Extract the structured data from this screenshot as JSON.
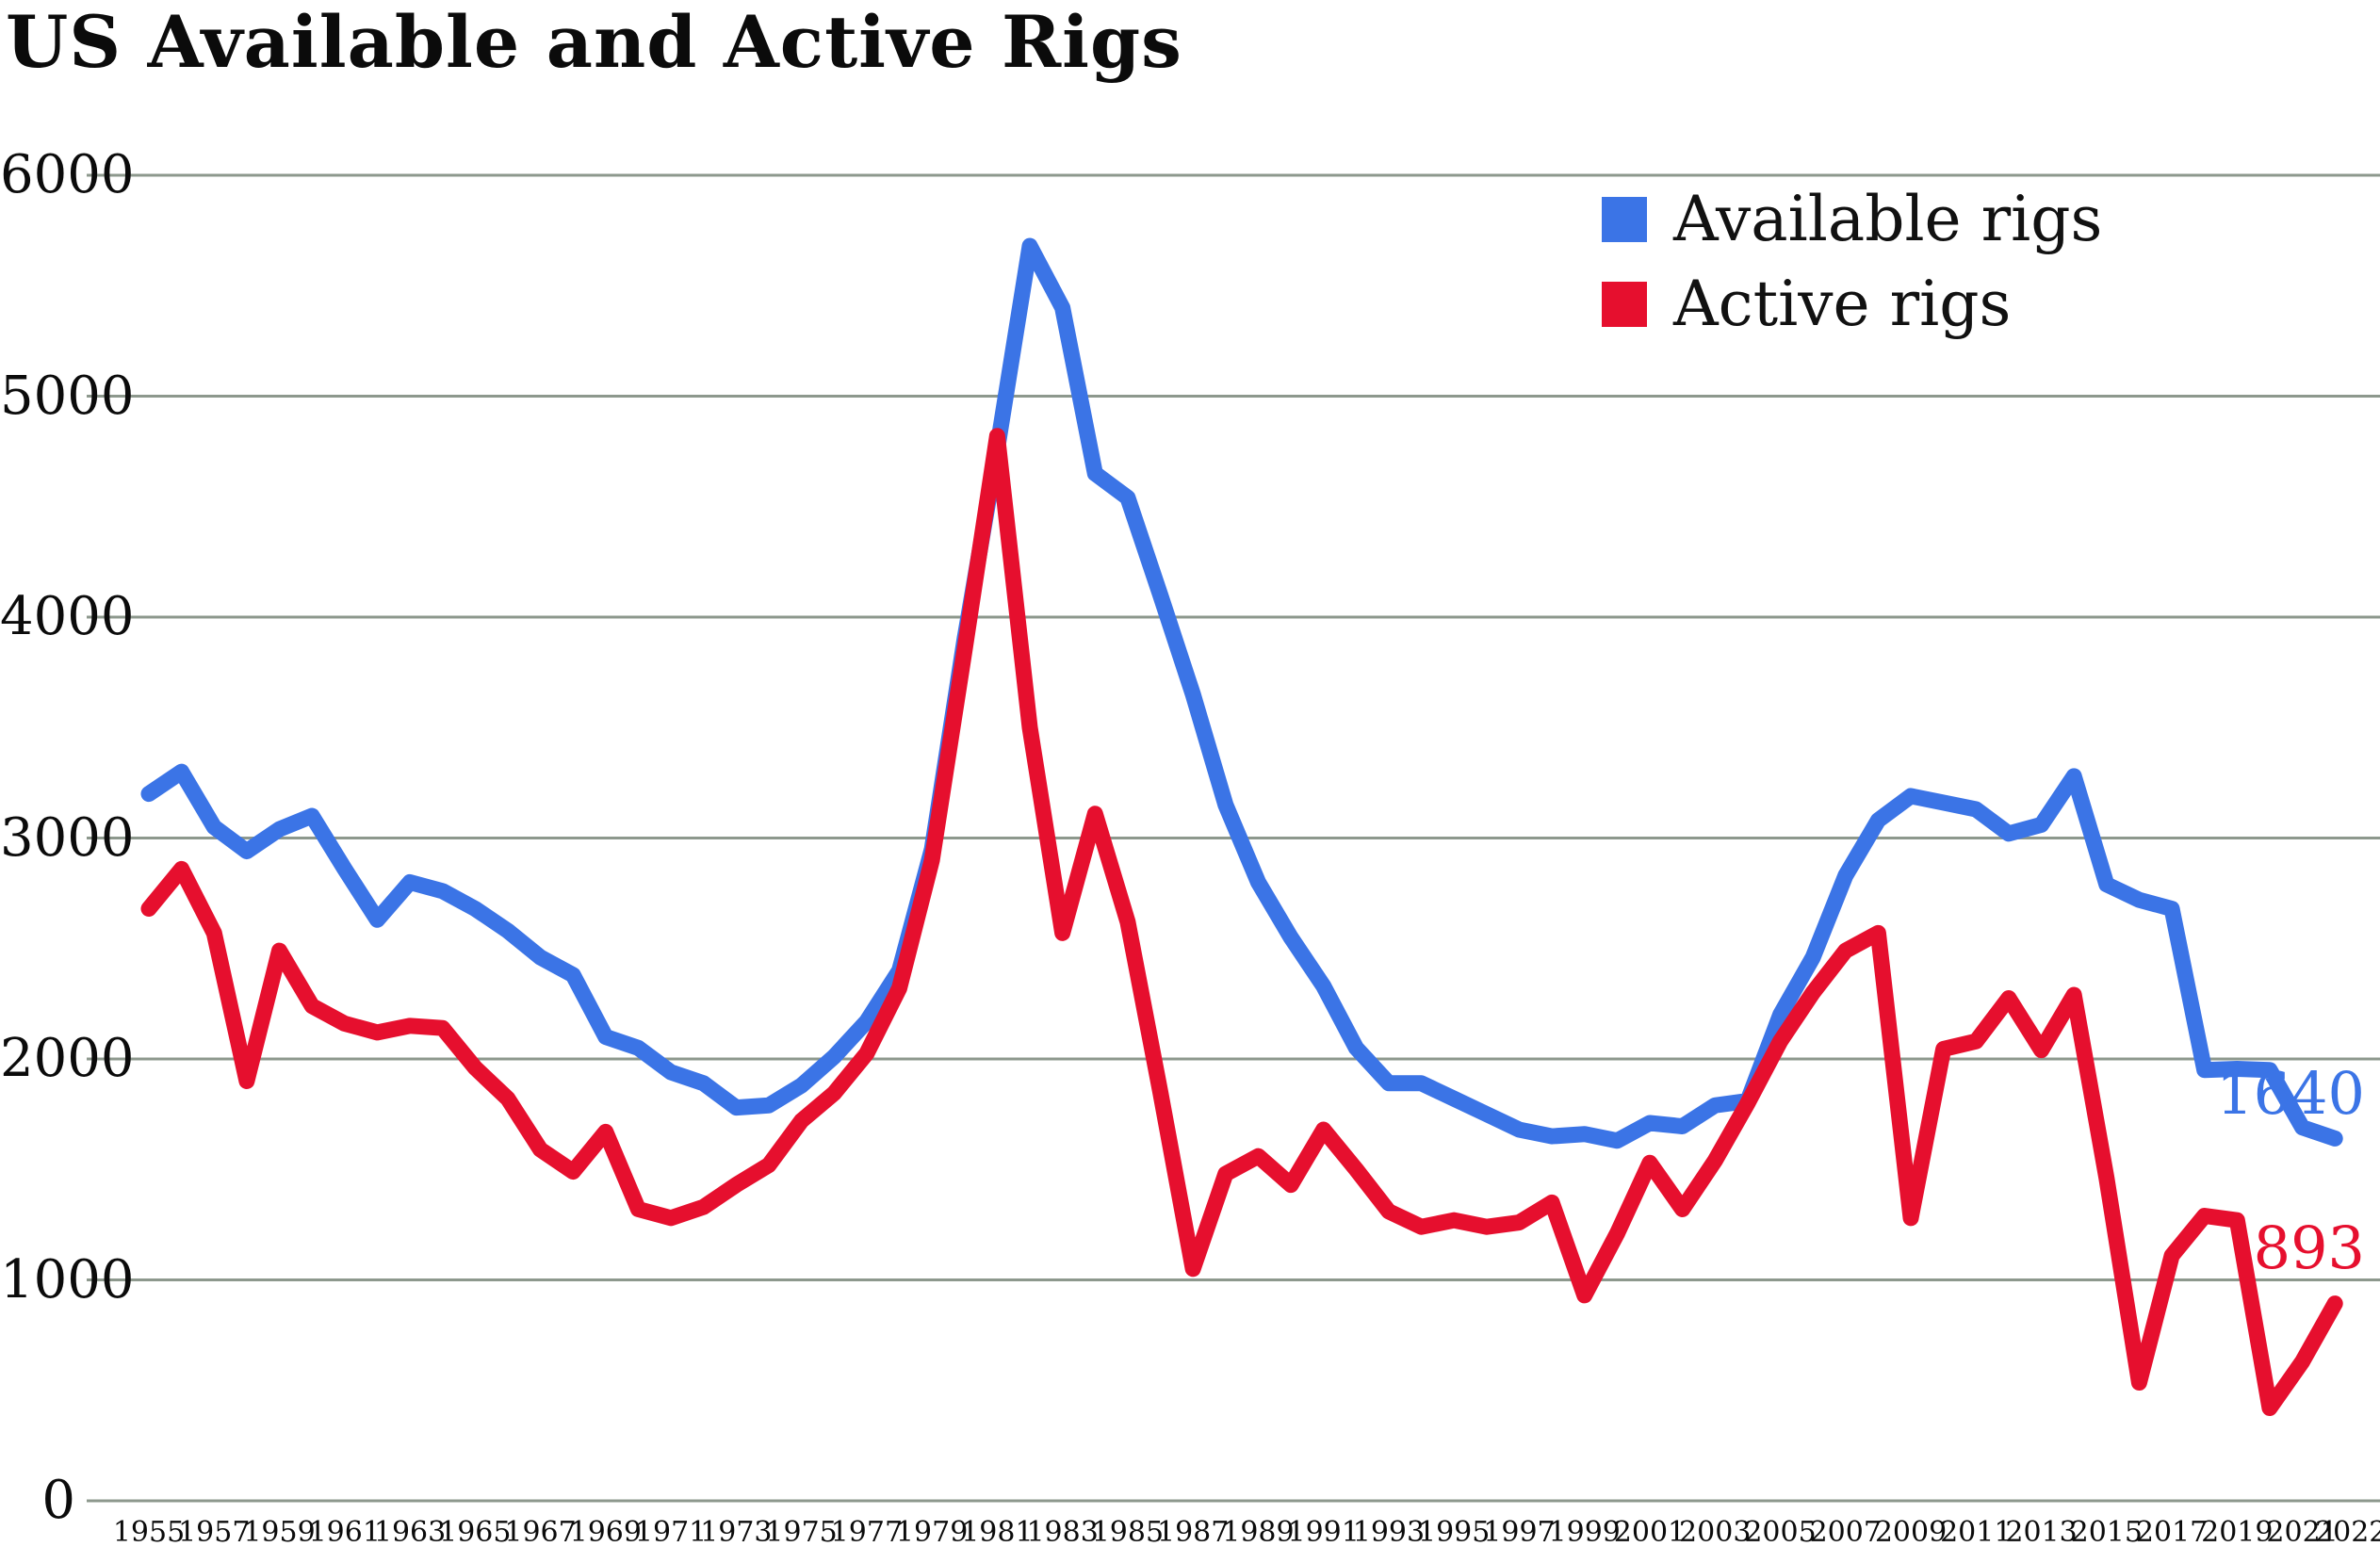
{
  "title": "US Available and Active Rigs",
  "colors": {
    "available": "#3B74E6",
    "active": "#E60F2E",
    "gridline": "#8D988D",
    "text": "#0B0B0B",
    "background": "#FFFFFF"
  },
  "legend": {
    "items": [
      {
        "label": "Available rigs",
        "color": "#3B74E6"
      },
      {
        "label": "Active rigs",
        "color": "#E60F2E"
      }
    ]
  },
  "end_labels": {
    "available": "1640",
    "active": "893"
  },
  "chart_data": {
    "type": "line",
    "title": "US Available and Active Rigs",
    "xlabel": "",
    "ylabel": "",
    "ylim": [
      0,
      6000
    ],
    "yticks": [
      0,
      1000,
      2000,
      3000,
      4000,
      5000,
      6000
    ],
    "grid": "horizontal",
    "legend_position": "top-right",
    "xtick_labels": [
      "1955",
      "1957",
      "1959",
      "1961",
      "1963",
      "1965",
      "1967",
      "1969",
      "1971",
      "1973",
      "1975",
      "1977",
      "1979",
      "1981",
      "1983",
      "1985",
      "1987",
      "1989",
      "1991",
      "1993",
      "1995",
      "1997",
      "1999",
      "2001",
      "2003",
      "2005",
      "2007",
      "2009",
      "2011",
      "2013",
      "2015",
      "2017",
      "2019",
      "2021",
      "2022"
    ],
    "x": [
      1955,
      1956,
      1957,
      1958,
      1959,
      1960,
      1961,
      1962,
      1963,
      1964,
      1965,
      1966,
      1967,
      1968,
      1969,
      1970,
      1971,
      1972,
      1973,
      1974,
      1975,
      1976,
      1977,
      1978,
      1979,
      1980,
      1981,
      1982,
      1983,
      1984,
      1985,
      1986,
      1987,
      1988,
      1989,
      1990,
      1991,
      1992,
      1993,
      1994,
      1995,
      1996,
      1997,
      1998,
      1999,
      2000,
      2001,
      2002,
      2003,
      2004,
      2005,
      2006,
      2007,
      2008,
      2009,
      2010,
      2011,
      2012,
      2013,
      2014,
      2015,
      2016,
      2017,
      2018,
      2019,
      2020,
      2021,
      2022
    ],
    "series": [
      {
        "name": "Available rigs",
        "color": "#3B74E6",
        "values": [
          3200,
          3300,
          3050,
          2940,
          3040,
          3100,
          2860,
          2630,
          2800,
          2760,
          2680,
          2580,
          2460,
          2380,
          2100,
          2050,
          1940,
          1890,
          1780,
          1790,
          1880,
          2010,
          2170,
          2400,
          2950,
          3900,
          4760,
          5680,
          5400,
          4650,
          4540,
          4100,
          3650,
          3150,
          2800,
          2550,
          2330,
          2050,
          1890,
          1890,
          1820,
          1750,
          1680,
          1650,
          1660,
          1630,
          1710,
          1695,
          1790,
          1810,
          2200,
          2460,
          2830,
          3080,
          3190,
          3160,
          3130,
          3020,
          3060,
          3280,
          2790,
          2720,
          2680,
          1950,
          1955,
          1950,
          1690,
          1640
        ]
      },
      {
        "name": "Active rigs",
        "color": "#E60F2E",
        "values": [
          2680,
          2860,
          2570,
          1900,
          2490,
          2240,
          2160,
          2120,
          2150,
          2140,
          1960,
          1820,
          1590,
          1490,
          1670,
          1320,
          1280,
          1330,
          1430,
          1520,
          1720,
          1845,
          2025,
          2320,
          2900,
          3850,
          4820,
          3500,
          2570,
          3110,
          2620,
          1850,
          1050,
          1480,
          1560,
          1430,
          1680,
          1500,
          1310,
          1240,
          1270,
          1240,
          1260,
          1350,
          930,
          1210,
          1530,
          1320,
          1540,
          1800,
          2080,
          2300,
          2490,
          2570,
          1280,
          2045,
          2080,
          2275,
          2040,
          2290,
          1460,
          535,
          1110,
          1290,
          1270,
          420,
          630,
          893
        ]
      }
    ]
  }
}
